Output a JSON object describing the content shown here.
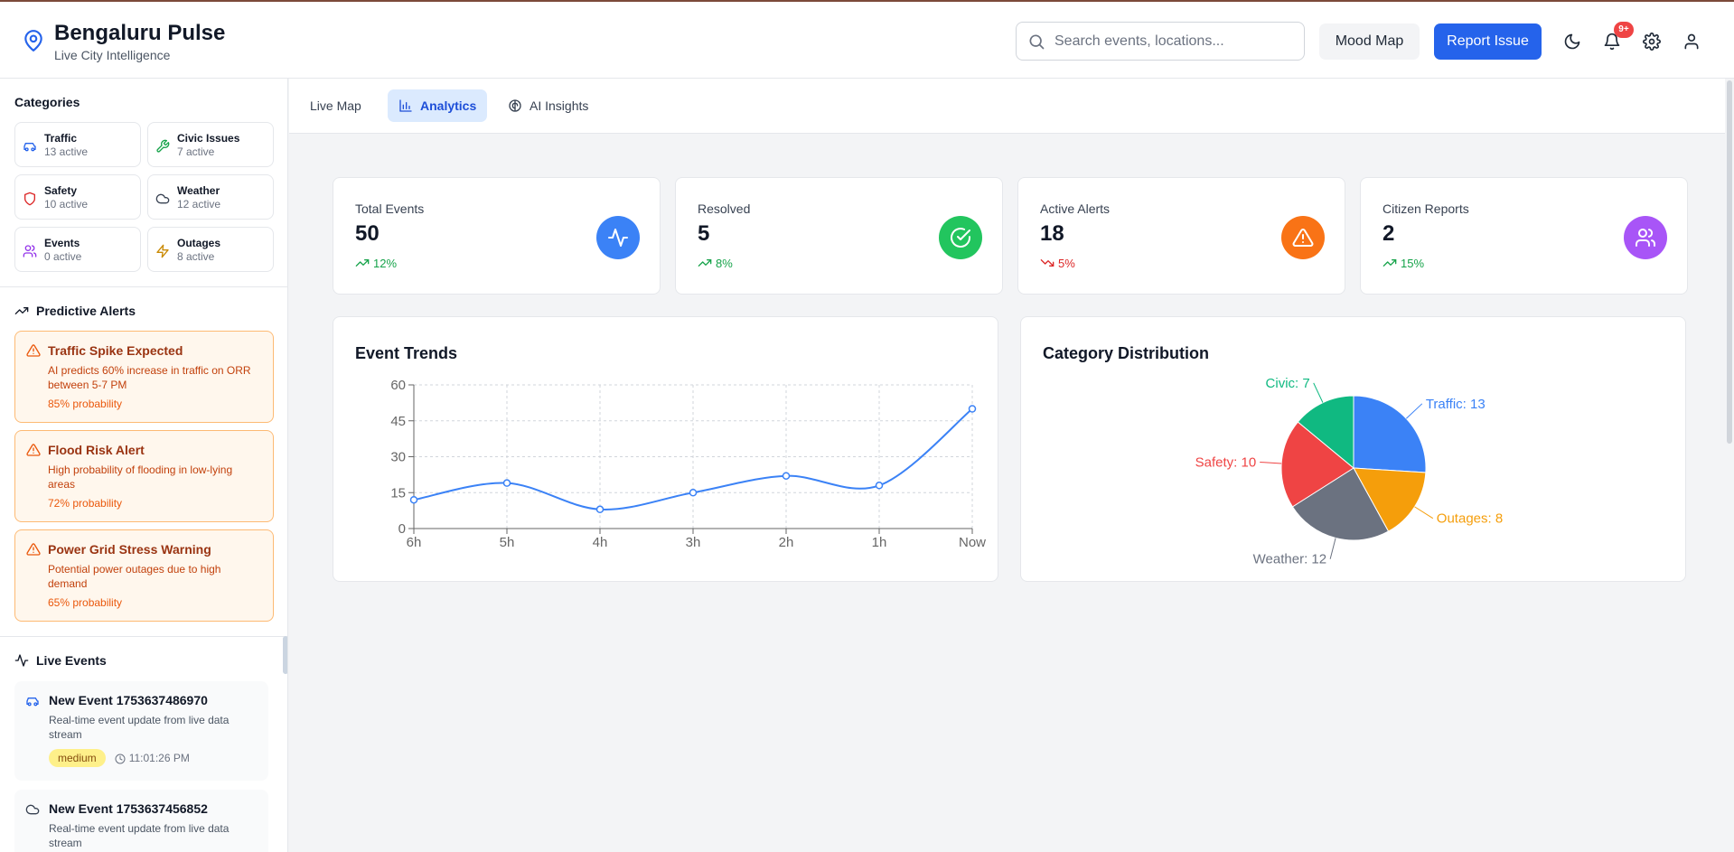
{
  "header": {
    "title": "Bengaluru Pulse",
    "subtitle": "Live City Intelligence",
    "search_placeholder": "Search events, locations...",
    "mood_map_label": "Mood Map",
    "report_issue_label": "Report Issue",
    "notification_badge": "9+",
    "accent_color": "#2563eb"
  },
  "sidebar": {
    "categories_title": "Categories",
    "categories": [
      {
        "name": "Traffic",
        "count": "13 active",
        "icon": "car-icon",
        "color": "#2563eb"
      },
      {
        "name": "Civic Issues",
        "count": "7 active",
        "icon": "wrench-icon",
        "color": "#16a34a"
      },
      {
        "name": "Safety",
        "count": "10 active",
        "icon": "shield-icon",
        "color": "#dc2626"
      },
      {
        "name": "Weather",
        "count": "12 active",
        "icon": "cloud-icon",
        "color": "#4b5563"
      },
      {
        "name": "Events",
        "count": "0 active",
        "icon": "users-icon",
        "color": "#9333ea"
      },
      {
        "name": "Outages",
        "count": "8 active",
        "icon": "zap-icon",
        "color": "#ca8a04"
      }
    ],
    "predictive_title": "Predictive Alerts",
    "alerts": [
      {
        "title": "Traffic Spike Expected",
        "description": "AI predicts 60% increase in traffic on ORR between 5-7 PM",
        "probability": "85% probability"
      },
      {
        "title": "Flood Risk Alert",
        "description": "High probability of flooding in low-lying areas",
        "probability": "72% probability"
      },
      {
        "title": "Power Grid Stress Warning",
        "description": "Potential power outages due to high demand",
        "probability": "65% probability"
      }
    ],
    "live_title": "Live Events",
    "events": [
      {
        "title": "New Event 1753637486970",
        "description": "Real-time event update from live data stream",
        "severity": "medium",
        "time": "11:01:26 PM",
        "icon": "car-icon"
      },
      {
        "title": "New Event 1753637456852",
        "description": "Real-time event update from live data stream",
        "icon": "cloud-icon"
      }
    ]
  },
  "tabs": [
    {
      "label": "Live Map",
      "active": false
    },
    {
      "label": "Analytics",
      "active": true
    },
    {
      "label": "AI Insights",
      "active": false
    }
  ],
  "stats": [
    {
      "label": "Total Events",
      "value": "50",
      "trend": "12%",
      "direction": "up",
      "icon": "activity-icon",
      "color": "#3b82f6"
    },
    {
      "label": "Resolved",
      "value": "5",
      "trend": "8%",
      "direction": "up",
      "icon": "check-circle-icon",
      "color": "#22c55e"
    },
    {
      "label": "Active Alerts",
      "value": "18",
      "trend": "5%",
      "direction": "down",
      "icon": "alert-triangle-icon",
      "color": "#f97316"
    },
    {
      "label": "Citizen Reports",
      "value": "2",
      "trend": "15%",
      "direction": "up",
      "icon": "users-icon",
      "color": "#a855f7"
    }
  ],
  "panels": {
    "trends_title": "Event Trends",
    "distribution_title": "Category Distribution"
  },
  "chart_data": [
    {
      "type": "line",
      "title": "Event Trends",
      "categories": [
        "6h",
        "5h",
        "4h",
        "3h",
        "2h",
        "1h",
        "Now"
      ],
      "series": [
        {
          "values": [
            12,
            19,
            8,
            15,
            22,
            18,
            50
          ],
          "color": "#3b82f6"
        }
      ],
      "yticks": [
        0,
        15,
        30,
        45,
        60
      ],
      "ylim": [
        0,
        60
      ],
      "grid": true
    },
    {
      "type": "pie",
      "title": "Category Distribution",
      "slices": [
        {
          "label": "Traffic: 13",
          "value": 13,
          "color": "#3b82f6"
        },
        {
          "label": "Outages: 8",
          "value": 8,
          "color": "#f59e0b"
        },
        {
          "label": "Weather: 12",
          "value": 12,
          "color": "#6b7280"
        },
        {
          "label": "Safety: 10",
          "value": 10,
          "color": "#ef4444"
        },
        {
          "label": "Civic: 7",
          "value": 7,
          "color": "#10b981"
        }
      ]
    }
  ]
}
